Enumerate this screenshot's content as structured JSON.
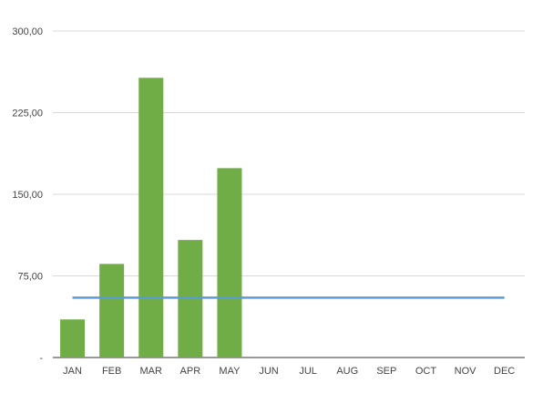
{
  "chart_data": {
    "type": "bar",
    "title": "",
    "xlabel": "",
    "ylabel": "",
    "categories": [
      "JAN",
      "FEB",
      "MAR",
      "APR",
      "MAY",
      "JUN",
      "JUL",
      "AUG",
      "SEP",
      "OCT",
      "NOV",
      "DEC"
    ],
    "series": [
      {
        "type": "bar",
        "values": [
          35,
          86,
          257,
          108,
          174,
          0,
          0,
          0,
          0,
          0,
          0,
          0
        ],
        "color": "#70ad47"
      },
      {
        "type": "line",
        "values": [
          55,
          55,
          55,
          55,
          55,
          55,
          55,
          55,
          55,
          55,
          55,
          55
        ],
        "color": "#5b9bd5"
      }
    ],
    "ylim": [
      0,
      300
    ],
    "yticks": [
      0,
      75,
      150,
      225,
      300
    ],
    "ytick_labels": [
      "-",
      "75,00",
      "150,00",
      "225,00",
      "300,00"
    ],
    "grid": true,
    "legend": "none"
  }
}
